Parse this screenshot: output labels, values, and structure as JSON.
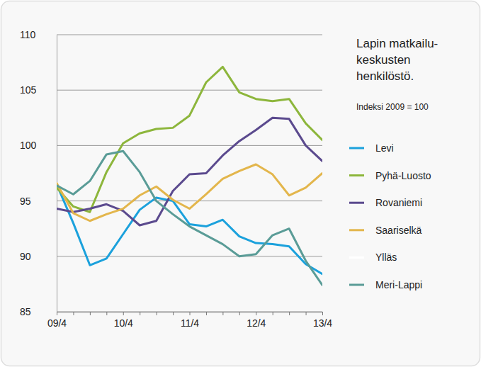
{
  "chart_data": {
    "type": "line",
    "title": "Lapin matkailu-\nkeskusten\nhenkilöstö.",
    "subtitle": "Indeksi 2009 = 100",
    "categories": [
      "09/4",
      null,
      null,
      null,
      "10/4",
      null,
      null,
      null,
      "11/4",
      null,
      null,
      null,
      "12/4",
      null,
      null,
      null,
      "13/4"
    ],
    "series": [
      {
        "name": "Levi",
        "color": "#1ba1dc",
        "values": [
          96.5,
          93.0,
          89.2,
          89.8,
          92.0,
          94.2,
          95.3,
          95.0,
          92.9,
          92.7,
          93.3,
          91.8,
          91.2,
          91.1,
          90.9,
          89.3,
          88.4
        ]
      },
      {
        "name": "Pyhä-Luosto",
        "color": "#8db63c",
        "values": [
          96.2,
          94.5,
          94.0,
          97.6,
          100.2,
          101.1,
          101.5,
          101.6,
          102.7,
          105.7,
          107.1,
          104.8,
          104.2,
          104.0,
          104.2,
          102.0,
          100.5
        ]
      },
      {
        "name": "Rovaniemi",
        "color": "#5b4a8e",
        "values": [
          94.3,
          94.0,
          94.3,
          94.7,
          94.1,
          92.8,
          93.2,
          95.9,
          97.4,
          97.5,
          99.1,
          100.4,
          101.4,
          102.5,
          102.4,
          100.0,
          98.6
        ]
      },
      {
        "name": "Saariselkä",
        "color": "#e3b64c",
        "values": [
          96.6,
          93.9,
          93.2,
          93.8,
          94.3,
          95.5,
          96.3,
          95.1,
          94.3,
          95.6,
          97.0,
          97.7,
          98.3,
          97.4,
          95.5,
          96.2,
          97.5
        ]
      },
      {
        "name": "Ylläs",
        "color": "#ffffff",
        "values": [
          null,
          null,
          null,
          null,
          null,
          null,
          null,
          null,
          null,
          null,
          null,
          null,
          null,
          null,
          null,
          null,
          null
        ]
      },
      {
        "name": "Meri-Lappi",
        "color": "#5a9c97",
        "values": [
          96.4,
          95.6,
          96.8,
          99.2,
          99.5,
          97.6,
          95.0,
          93.8,
          92.7,
          91.9,
          91.1,
          90.0,
          90.2,
          91.9,
          92.5,
          89.6,
          87.4
        ]
      }
    ],
    "ylim": [
      85,
      110
    ],
    "yticks": [
      85,
      90,
      95,
      100,
      105,
      110
    ],
    "grid": true,
    "legend": "right"
  }
}
